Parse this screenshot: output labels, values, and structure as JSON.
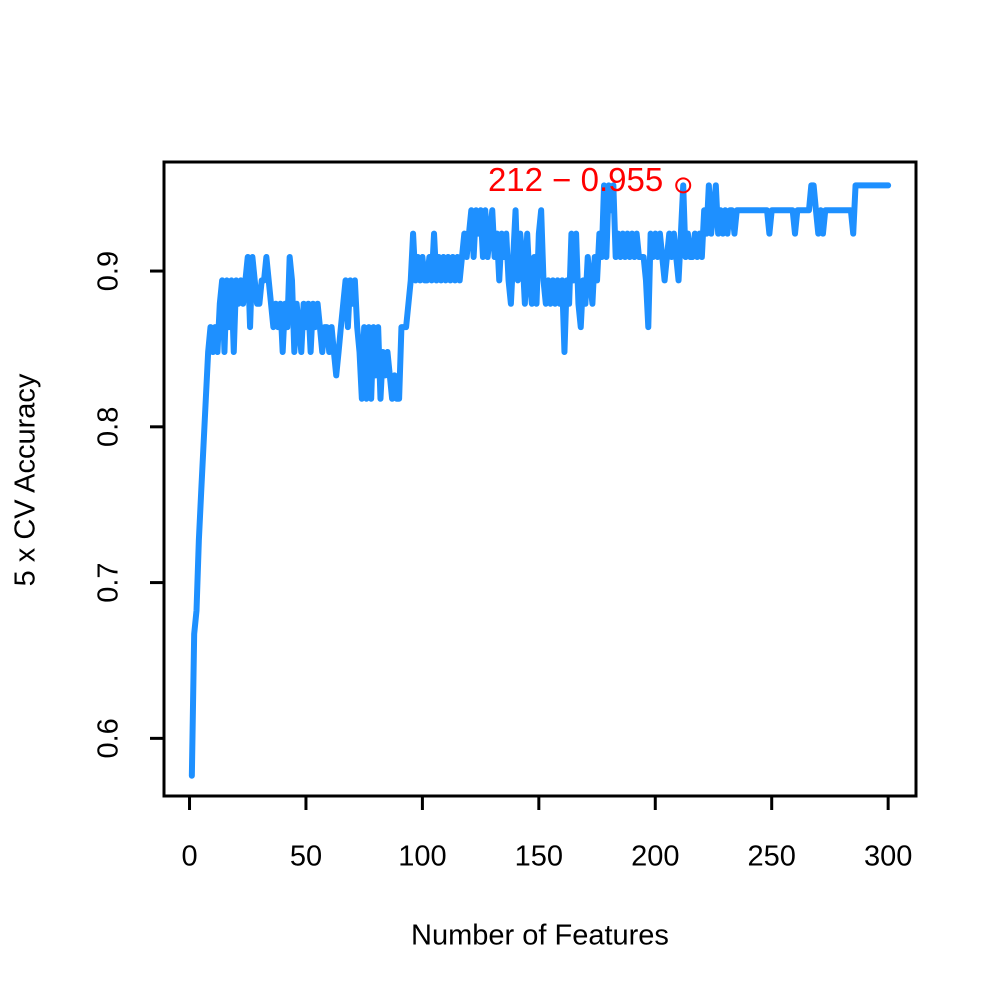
{
  "chart_data": {
    "type": "line",
    "x_label": "Number of Features",
    "y_label": "5 x CV Accuracy",
    "xlim": [
      -10.96,
      311.96
    ],
    "ylim": [
      0.563,
      0.97
    ],
    "xticks": [
      0,
      50,
      100,
      150,
      200,
      250,
      300
    ],
    "yticks": [
      0.6,
      0.7,
      0.8,
      0.9
    ],
    "grid": false,
    "annotation": {
      "text": "212 − 0.955",
      "x": 212,
      "y": 0.955,
      "color": "#ff0000"
    },
    "series": [
      {
        "name": "accuracy",
        "color": "#1e90ff",
        "x": [
          1,
          2,
          3,
          4,
          5,
          6,
          7,
          8,
          9,
          10,
          11,
          12,
          13,
          14,
          15,
          16,
          17,
          18,
          19,
          20,
          21,
          22,
          23,
          24,
          25,
          26,
          27,
          28,
          29,
          30,
          31,
          32,
          33,
          34,
          35,
          36,
          37,
          38,
          39,
          40,
          41,
          42,
          43,
          44,
          45,
          46,
          47,
          48,
          49,
          50,
          51,
          52,
          53,
          54,
          55,
          56,
          57,
          58,
          59,
          60,
          61,
          62,
          63,
          64,
          65,
          66,
          67,
          68,
          69,
          70,
          71,
          72,
          73,
          74,
          75,
          76,
          77,
          78,
          79,
          80,
          81,
          82,
          83,
          84,
          85,
          86,
          87,
          88,
          89,
          90,
          91,
          92,
          93,
          94,
          95,
          96,
          97,
          98,
          99,
          100,
          101,
          102,
          103,
          104,
          105,
          106,
          107,
          108,
          109,
          110,
          111,
          112,
          113,
          114,
          115,
          116,
          117,
          118,
          119,
          120,
          121,
          122,
          123,
          124,
          125,
          126,
          127,
          128,
          129,
          130,
          131,
          132,
          133,
          134,
          135,
          136,
          137,
          138,
          139,
          140,
          141,
          142,
          143,
          144,
          145,
          146,
          147,
          148,
          149,
          150,
          151,
          152,
          153,
          154,
          155,
          156,
          157,
          158,
          159,
          160,
          161,
          162,
          163,
          164,
          165,
          166,
          167,
          168,
          169,
          170,
          171,
          172,
          173,
          174,
          175,
          176,
          177,
          178,
          179,
          180,
          181,
          182,
          183,
          184,
          185,
          186,
          187,
          188,
          189,
          190,
          191,
          192,
          193,
          194,
          195,
          196,
          197,
          198,
          199,
          200,
          201,
          202,
          203,
          204,
          205,
          206,
          207,
          208,
          209,
          210,
          211,
          212,
          213,
          214,
          215,
          216,
          217,
          218,
          219,
          220,
          221,
          222,
          223,
          224,
          225,
          226,
          227,
          228,
          229,
          230,
          231,
          232,
          233,
          234,
          235,
          236,
          237,
          238,
          239,
          240,
          241,
          242,
          243,
          244,
          245,
          246,
          247,
          248,
          249,
          250,
          251,
          252,
          253,
          254,
          255,
          256,
          257,
          258,
          259,
          260,
          261,
          262,
          263,
          264,
          265,
          266,
          267,
          268,
          269,
          270,
          271,
          272,
          273,
          274,
          275,
          276,
          277,
          278,
          279,
          280,
          281,
          282,
          283,
          284,
          285,
          286,
          287,
          288,
          289,
          290,
          291,
          292,
          293,
          294,
          295,
          296,
          297,
          298,
          299,
          300
        ],
        "values": [
          0.576,
          0.667,
          0.682,
          0.727,
          0.758,
          0.788,
          0.818,
          0.848,
          0.864,
          0.848,
          0.864,
          0.848,
          0.879,
          0.894,
          0.848,
          0.894,
          0.864,
          0.894,
          0.848,
          0.894,
          0.879,
          0.894,
          0.879,
          0.894,
          0.909,
          0.864,
          0.909,
          0.894,
          0.879,
          0.879,
          0.894,
          0.894,
          0.909,
          0.894,
          0.879,
          0.864,
          0.879,
          0.864,
          0.879,
          0.848,
          0.879,
          0.864,
          0.909,
          0.894,
          0.848,
          0.879,
          0.864,
          0.848,
          0.879,
          0.864,
          0.879,
          0.848,
          0.879,
          0.864,
          0.879,
          0.864,
          0.848,
          0.864,
          0.864,
          0.848,
          0.864,
          0.848,
          0.833,
          0.848,
          0.864,
          0.879,
          0.894,
          0.864,
          0.894,
          0.879,
          0.894,
          0.864,
          0.848,
          0.818,
          0.864,
          0.818,
          0.864,
          0.818,
          0.864,
          0.833,
          0.864,
          0.818,
          0.848,
          0.833,
          0.848,
          0.833,
          0.818,
          0.833,
          0.818,
          0.818,
          0.864,
          0.864,
          0.864,
          0.879,
          0.894,
          0.924,
          0.894,
          0.909,
          0.894,
          0.909,
          0.894,
          0.894,
          0.909,
          0.894,
          0.924,
          0.894,
          0.909,
          0.894,
          0.909,
          0.894,
          0.909,
          0.894,
          0.909,
          0.894,
          0.909,
          0.894,
          0.909,
          0.924,
          0.909,
          0.924,
          0.939,
          0.909,
          0.939,
          0.924,
          0.939,
          0.909,
          0.939,
          0.909,
          0.924,
          0.939,
          0.909,
          0.924,
          0.894,
          0.924,
          0.909,
          0.924,
          0.894,
          0.879,
          0.909,
          0.939,
          0.894,
          0.924,
          0.909,
          0.879,
          0.924,
          0.894,
          0.879,
          0.909,
          0.879,
          0.924,
          0.939,
          0.894,
          0.879,
          0.894,
          0.879,
          0.894,
          0.879,
          0.894,
          0.879,
          0.894,
          0.848,
          0.894,
          0.879,
          0.924,
          0.894,
          0.924,
          0.879,
          0.864,
          0.894,
          0.879,
          0.909,
          0.894,
          0.879,
          0.909,
          0.894,
          0.924,
          0.909,
          0.955,
          0.909,
          0.955,
          0.939,
          0.955,
          0.909,
          0.924,
          0.909,
          0.924,
          0.909,
          0.924,
          0.909,
          0.924,
          0.909,
          0.924,
          0.909,
          0.909,
          0.909,
          0.894,
          0.864,
          0.924,
          0.909,
          0.924,
          0.909,
          0.924,
          0.909,
          0.894,
          0.909,
          0.924,
          0.909,
          0.924,
          0.909,
          0.894,
          0.924,
          0.955,
          0.909,
          0.924,
          0.909,
          0.909,
          0.924,
          0.909,
          0.924,
          0.909,
          0.939,
          0.924,
          0.955,
          0.924,
          0.939,
          0.955,
          0.924,
          0.939,
          0.924,
          0.939,
          0.924,
          0.939,
          0.939,
          0.924,
          0.939,
          0.939,
          0.939,
          0.939,
          0.939,
          0.939,
          0.939,
          0.939,
          0.939,
          0.939,
          0.939,
          0.939,
          0.939,
          0.939,
          0.924,
          0.939,
          0.939,
          0.939,
          0.939,
          0.939,
          0.939,
          0.939,
          0.939,
          0.939,
          0.939,
          0.924,
          0.939,
          0.939,
          0.939,
          0.939,
          0.939,
          0.939,
          0.955,
          0.955,
          0.939,
          0.924,
          0.939,
          0.924,
          0.939,
          0.939,
          0.939,
          0.939,
          0.939,
          0.939,
          0.939,
          0.939,
          0.939,
          0.939,
          0.939,
          0.939,
          0.924,
          0.955,
          0.955,
          0.955,
          0.955,
          0.955,
          0.955,
          0.955,
          0.955,
          0.955,
          0.955,
          0.955,
          0.955,
          0.955,
          0.955,
          0.955
        ]
      }
    ]
  }
}
